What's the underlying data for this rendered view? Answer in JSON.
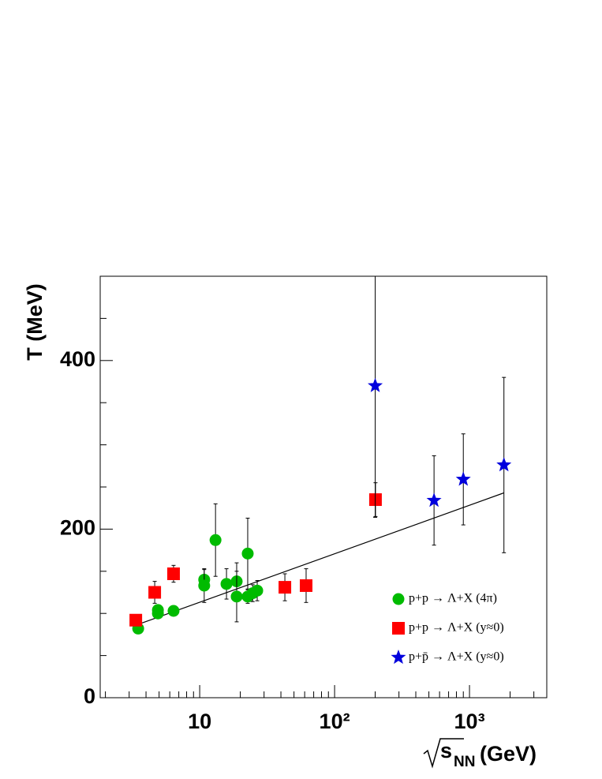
{
  "chart_data": {
    "type": "scatter",
    "ylabel": "T (MeV)",
    "xlabel": {
      "main": "s",
      "sub": "NN",
      "unit": "(GeV)"
    },
    "xscale": "log",
    "xlim": [
      1.83,
      3740
    ],
    "xticks": [
      {
        "value": 10,
        "label": "10"
      },
      {
        "value": 100,
        "label": "10²"
      },
      {
        "value": 1000,
        "label": "10³"
      }
    ],
    "xminorticks": [
      2,
      3,
      4,
      5,
      6,
      7,
      8,
      9,
      20,
      30,
      40,
      50,
      60,
      70,
      80,
      90,
      200,
      300,
      400,
      500,
      600,
      700,
      800,
      900,
      2000,
      3000
    ],
    "ylim": [
      0,
      500
    ],
    "yticks": [
      0,
      200,
      400
    ],
    "yminorticks": [
      50,
      100,
      150,
      250,
      300,
      350,
      450
    ],
    "legend": "lower right",
    "series": [
      {
        "name": "p+p → Λ+X (4π)",
        "color": "#00bb00",
        "marker": "circle",
        "x": [
          3.5,
          4.9,
          4.9,
          6.4,
          10.8,
          10.8,
          13.1,
          15.8,
          18.8,
          18.8,
          22.7,
          22.7,
          24.7,
          26.7
        ],
        "values": [
          82,
          104,
          100,
          103,
          140,
          133,
          187,
          135,
          138,
          120,
          171,
          120,
          124,
          127
        ],
        "errors": [
          4,
          4,
          4,
          4,
          12,
          20,
          43,
          18,
          22,
          30,
          42,
          8,
          10,
          12
        ]
      },
      {
        "name": "p+p → Λ+X (y≈0)",
        "color": "#ff0000",
        "marker": "square",
        "x": [
          3.36,
          4.64,
          6.4,
          42.8,
          61.5,
          201
        ],
        "values": [
          92,
          125,
          147,
          131,
          133,
          235
        ],
        "errors": [
          5,
          13,
          10,
          16,
          20,
          20
        ]
      },
      {
        "name": "p+p̄ → Λ+X (y≈0)",
        "color": "#0000dd",
        "marker": "star",
        "x": [
          200,
          546,
          900,
          1800
        ],
        "values": [
          370,
          234,
          259,
          276
        ],
        "errors": [
          156,
          53,
          54,
          104
        ]
      }
    ],
    "fit": {
      "x": [
        3.5,
        1800
      ],
      "y": [
        87,
        243
      ],
      "color": "#000000"
    }
  }
}
